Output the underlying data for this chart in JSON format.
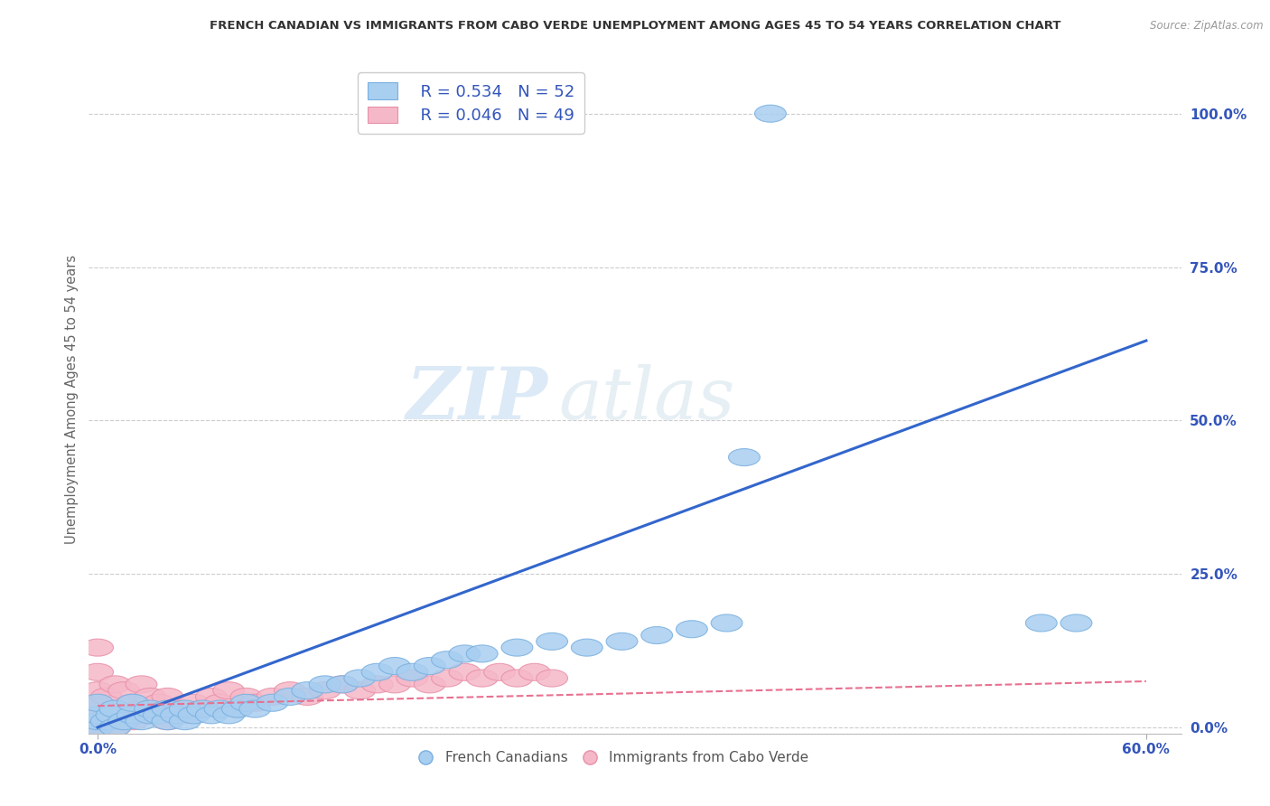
{
  "title": "FRENCH CANADIAN VS IMMIGRANTS FROM CABO VERDE UNEMPLOYMENT AMONG AGES 45 TO 54 YEARS CORRELATION CHART",
  "source": "Source: ZipAtlas.com",
  "ylabel": "Unemployment Among Ages 45 to 54 years",
  "y_tick_labels": [
    "0.0%",
    "25.0%",
    "50.0%",
    "75.0%",
    "100.0%"
  ],
  "y_tick_values": [
    0.0,
    0.25,
    0.5,
    0.75,
    1.0
  ],
  "xlim": [
    -0.005,
    0.62
  ],
  "ylim": [
    -0.01,
    1.08
  ],
  "blue_color": "#a8cef0",
  "blue_edge_color": "#7ab0e0",
  "pink_color": "#f5b8c8",
  "pink_edge_color": "#e890a8",
  "blue_line_color": "#3366cc",
  "pink_line_color": "#e87090",
  "legend_r_blue": "R = 0.534",
  "legend_n_blue": "N = 52",
  "legend_r_pink": "R = 0.046",
  "legend_n_pink": "N = 49",
  "legend_label_blue": "French Canadians",
  "legend_label_pink": "Immigrants from Cabo Verde",
  "watermark_zip": "ZIP",
  "watermark_atlas": "atlas",
  "background_color": "#ffffff",
  "grid_color": "#cccccc",
  "title_color": "#333333",
  "source_color": "#999999",
  "ylabel_color": "#666666",
  "tick_color": "#3355bb",
  "blue_scatter_x": [
    0.0,
    0.0,
    0.0,
    0.0,
    0.005,
    0.008,
    0.01,
    0.01,
    0.015,
    0.02,
    0.02,
    0.025,
    0.03,
    0.03,
    0.035,
    0.04,
    0.04,
    0.045,
    0.05,
    0.05,
    0.055,
    0.06,
    0.065,
    0.07,
    0.075,
    0.08,
    0.085,
    0.09,
    0.1,
    0.11,
    0.12,
    0.13,
    0.14,
    0.15,
    0.16,
    0.17,
    0.18,
    0.19,
    0.2,
    0.21,
    0.22,
    0.24,
    0.26,
    0.28,
    0.3,
    0.32,
    0.34,
    0.36,
    0.37,
    0.385,
    0.54,
    0.56
  ],
  "blue_scatter_y": [
    0.0,
    0.01,
    0.02,
    0.04,
    0.01,
    0.02,
    0.0,
    0.03,
    0.01,
    0.02,
    0.04,
    0.01,
    0.02,
    0.03,
    0.02,
    0.01,
    0.03,
    0.02,
    0.01,
    0.03,
    0.02,
    0.03,
    0.02,
    0.03,
    0.02,
    0.03,
    0.04,
    0.03,
    0.04,
    0.05,
    0.06,
    0.07,
    0.07,
    0.08,
    0.09,
    0.1,
    0.09,
    0.1,
    0.11,
    0.12,
    0.12,
    0.13,
    0.14,
    0.13,
    0.14,
    0.15,
    0.16,
    0.17,
    0.44,
    1.0,
    0.17,
    0.17
  ],
  "pink_scatter_x": [
    0.0,
    0.0,
    0.0,
    0.0,
    0.0,
    0.0,
    0.005,
    0.005,
    0.01,
    0.01,
    0.01,
    0.015,
    0.015,
    0.02,
    0.02,
    0.025,
    0.025,
    0.03,
    0.03,
    0.035,
    0.04,
    0.04,
    0.045,
    0.05,
    0.055,
    0.06,
    0.065,
    0.07,
    0.075,
    0.08,
    0.085,
    0.09,
    0.1,
    0.11,
    0.12,
    0.13,
    0.14,
    0.15,
    0.16,
    0.17,
    0.18,
    0.19,
    0.2,
    0.21,
    0.22,
    0.23,
    0.24,
    0.25,
    0.26
  ],
  "pink_scatter_y": [
    0.0,
    0.02,
    0.04,
    0.06,
    0.09,
    0.13,
    0.01,
    0.05,
    0.0,
    0.03,
    0.07,
    0.02,
    0.06,
    0.01,
    0.04,
    0.03,
    0.07,
    0.02,
    0.05,
    0.04,
    0.01,
    0.05,
    0.03,
    0.02,
    0.04,
    0.03,
    0.05,
    0.04,
    0.06,
    0.03,
    0.05,
    0.04,
    0.05,
    0.06,
    0.05,
    0.06,
    0.07,
    0.06,
    0.07,
    0.07,
    0.08,
    0.07,
    0.08,
    0.09,
    0.08,
    0.09,
    0.08,
    0.09,
    0.08
  ],
  "blue_trend_x": [
    0.0,
    0.6
  ],
  "blue_trend_y": [
    0.0,
    0.63
  ],
  "pink_trend_x": [
    0.0,
    0.6
  ],
  "pink_trend_y": [
    0.035,
    0.075
  ]
}
